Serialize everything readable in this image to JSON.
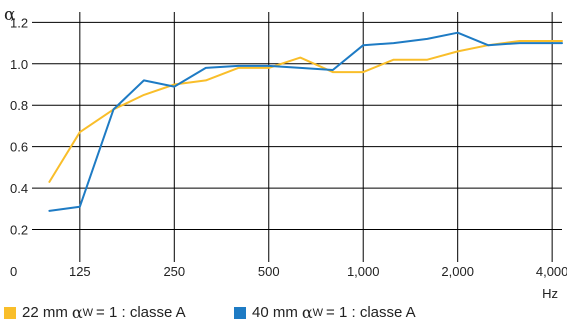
{
  "chart_data": {
    "type": "line",
    "ylabel": "α",
    "xlabel": "Hz",
    "y_ticks": [
      "0",
      "0.2",
      "0.4",
      "0.6",
      "0.8",
      "1.0",
      "1.2"
    ],
    "x_ticks": [
      "125",
      "250",
      "500",
      "1,000",
      "2,000",
      "4,000"
    ],
    "x_tick_values": [
      125,
      250,
      500,
      1000,
      2000,
      4000
    ],
    "x_scale": "log",
    "xlim": [
      88,
      4300
    ],
    "ylim": [
      0,
      1.25
    ],
    "grid": true,
    "legend_position": "bottom",
    "series": [
      {
        "name": "22 mm αW = 1 : classe A",
        "color": "#F9BE2A",
        "x": [
          100,
          125,
          160,
          200,
          250,
          315,
          400,
          500,
          630,
          800,
          1000,
          1250,
          1600,
          2000,
          2500,
          3150,
          4000,
          4300
        ],
        "y": [
          0.43,
          0.67,
          0.78,
          0.85,
          0.9,
          0.92,
          0.98,
          0.98,
          1.03,
          0.96,
          0.96,
          1.02,
          1.02,
          1.06,
          1.09,
          1.11,
          1.11,
          1.11
        ]
      },
      {
        "name": "40 mm αW = 1 : classe A",
        "color": "#1E7BC4",
        "x": [
          100,
          125,
          160,
          200,
          250,
          315,
          400,
          500,
          630,
          800,
          1000,
          1250,
          1600,
          2000,
          2500,
          3150,
          4000,
          4300
        ],
        "y": [
          0.29,
          0.31,
          0.78,
          0.92,
          0.89,
          0.98,
          0.99,
          0.99,
          0.98,
          0.97,
          1.09,
          1.1,
          1.12,
          1.15,
          1.09,
          1.1,
          1.1,
          1.1
        ]
      }
    ]
  },
  "legend": [
    {
      "size": "22 mm",
      "alpha": "α",
      "sub": "W",
      "rest": "= 1 : classe A",
      "color": "#F9BE2A"
    },
    {
      "size": "40 mm",
      "alpha": "α",
      "sub": "W",
      "rest": "= 1 : classe A",
      "color": "#1E7BC4"
    }
  ]
}
